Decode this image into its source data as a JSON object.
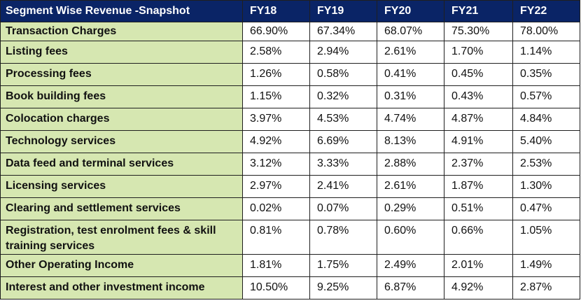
{
  "table": {
    "header": {
      "title": "Segment Wise Revenue -Snapshot",
      "years": [
        "FY18",
        "FY19",
        "FY20",
        "FY21",
        "FY22"
      ]
    },
    "rows": [
      {
        "segment": "Transaction Charges",
        "values": [
          "66.90%",
          "67.34%",
          "68.07%",
          "75.30%",
          "78.00%"
        ]
      },
      {
        "segment": "Listing fees",
        "values": [
          "2.58%",
          "2.94%",
          "2.61%",
          "1.70%",
          "1.14%"
        ]
      },
      {
        "segment": "Processing fees",
        "values": [
          "1.26%",
          "0.58%",
          "0.41%",
          "0.45%",
          "0.35%"
        ]
      },
      {
        "segment": "Book building fees",
        "values": [
          "1.15%",
          "0.32%",
          "0.31%",
          "0.43%",
          "0.57%"
        ]
      },
      {
        "segment": "Colocation charges",
        "values": [
          "3.97%",
          "4.53%",
          "4.74%",
          "4.87%",
          "4.84%"
        ]
      },
      {
        "segment": "Technology services",
        "values": [
          "4.92%",
          "6.69%",
          "8.13%",
          "4.91%",
          "5.40%"
        ]
      },
      {
        "segment": "Data feed and terminal services",
        "values": [
          "3.12%",
          "3.33%",
          "2.88%",
          "2.37%",
          "2.53%"
        ]
      },
      {
        "segment": "Licensing services",
        "values": [
          "2.97%",
          "2.41%",
          "2.61%",
          "1.87%",
          "1.30%"
        ]
      },
      {
        "segment": "Clearing and settlement services",
        "values": [
          "0.02%",
          "0.07%",
          "0.29%",
          "0.51%",
          "0.47%"
        ]
      },
      {
        "segment": "Registration, test enrolment fees & skill training services",
        "values": [
          "0.81%",
          "0.78%",
          "0.60%",
          "0.66%",
          "1.05%"
        ]
      },
      {
        "segment": "Other Operating Income",
        "values": [
          "1.81%",
          "1.75%",
          "2.49%",
          "2.01%",
          "1.49%"
        ]
      },
      {
        "segment": "Interest and other investment income",
        "values": [
          "10.50%",
          "9.25%",
          "6.87%",
          "4.92%",
          "2.87%"
        ]
      }
    ],
    "colors": {
      "header_bg": "#0a2466",
      "segment_bg": "#d6e7b1",
      "border": "#1f1f1f"
    }
  }
}
